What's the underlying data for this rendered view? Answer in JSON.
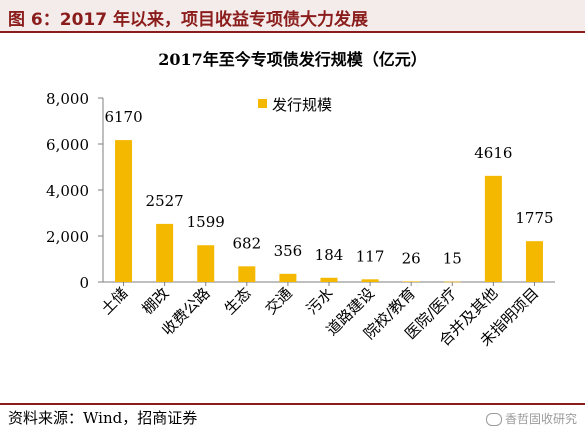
{
  "header": {
    "title": "图 6：2017 年以来，项目收益专项债大力发展"
  },
  "source": "资料来源：Wind，招商证券",
  "watermark": "香哲固收研究",
  "colors": {
    "bar": "#F5B800",
    "header_bg": "#F3ECEA",
    "header_text": "#8B1C1C",
    "rule": "#8B1C1C"
  },
  "chart_data": {
    "type": "bar",
    "title": "2017年至今专项债发行规模（亿元）",
    "xlabel": "",
    "ylabel": "",
    "ylim": [
      0,
      8000
    ],
    "yticks": [
      "0",
      "2,000",
      "4,000",
      "6,000",
      "8,000"
    ],
    "grid": false,
    "legend_position": "top",
    "categories": [
      "土储",
      "棚改",
      "收费公路",
      "生态",
      "交通",
      "污水",
      "道路建设",
      "院校/教育",
      "医院/医疗",
      "合并及其他",
      "未指明项目"
    ],
    "series": [
      {
        "name": "发行规模",
        "values": [
          6170,
          2527,
          1599,
          682,
          356,
          184,
          117,
          26,
          15,
          4616,
          1775
        ]
      }
    ]
  }
}
